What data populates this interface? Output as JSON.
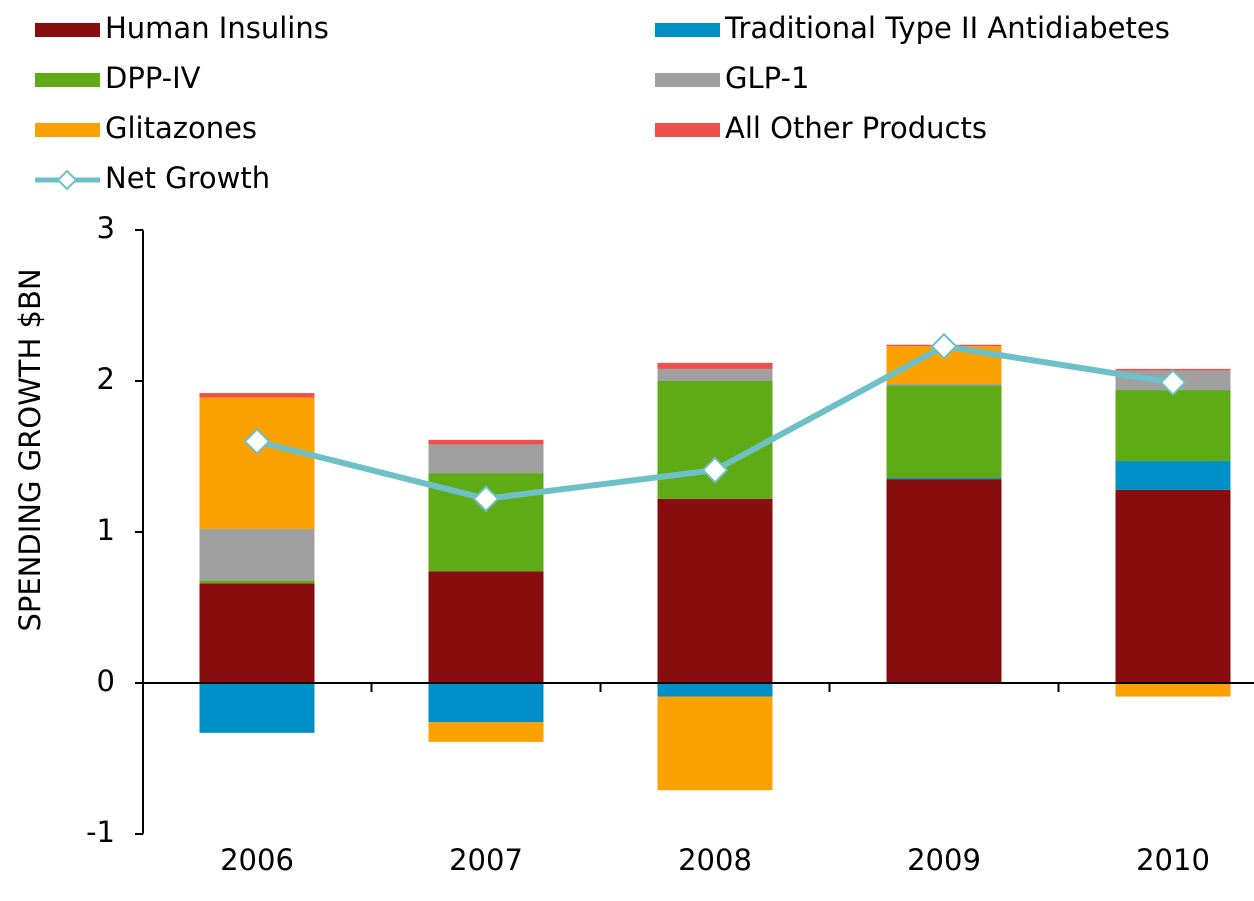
{
  "chart_data": {
    "type": "bar",
    "stacked": true,
    "y_label": "SPENDING GROWTH $BN",
    "categories": [
      "2006",
      "2007",
      "2008",
      "2009",
      "2010"
    ],
    "series": [
      {
        "name": "Human Insulins",
        "color": "#870d0f",
        "values": [
          0.66,
          0.74,
          1.22,
          1.35,
          1.28
        ]
      },
      {
        "name": "Traditional Type II Antidiabetes",
        "color": "#0090c8",
        "values": [
          -0.33,
          -0.26,
          -0.09,
          0.01,
          0.19
        ]
      },
      {
        "name": "DPP-IV",
        "color": "#5fab16",
        "values": [
          0.02,
          0.65,
          0.78,
          0.61,
          0.47
        ]
      },
      {
        "name": "GLP-1",
        "color": "#a0a0a0",
        "values": [
          0.34,
          0.19,
          0.08,
          0.01,
          0.13
        ]
      },
      {
        "name": "Glitazones",
        "color": "#fba200",
        "values": [
          0.87,
          -0.13,
          -0.62,
          0.25,
          -0.09
        ]
      },
      {
        "name": "All Other Products",
        "color": "#f0504a",
        "values": [
          0.03,
          0.03,
          0.04,
          0.01,
          0.01
        ]
      },
      {
        "name": "Net Growth",
        "type": "line",
        "color": "#6ec0c8",
        "values": [
          1.6,
          1.22,
          1.41,
          2.23,
          1.99
        ]
      }
    ],
    "ylim": [
      -1,
      3
    ],
    "yticks": [
      -1,
      0,
      1,
      2,
      3
    ],
    "legend": "top"
  }
}
